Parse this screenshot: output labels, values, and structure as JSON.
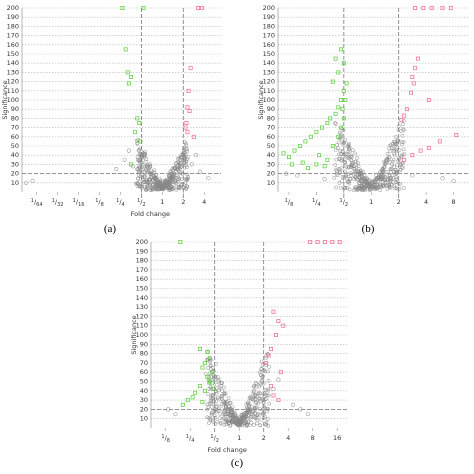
{
  "chart_data": [
    {
      "type": "scatter",
      "panel_label": "(a)",
      "xlabel": "Fold change",
      "ylabel": "Significance",
      "x_scale": "log2",
      "ylim": [
        0,
        200
      ],
      "yticks": [
        10,
        20,
        30,
        40,
        50,
        60,
        70,
        80,
        90,
        100,
        110,
        120,
        130,
        140,
        150,
        160,
        170,
        180,
        190,
        200
      ],
      "xticks": [
        {
          "v": -6,
          "label": "1/64"
        },
        {
          "v": -5,
          "label": "1/32"
        },
        {
          "v": -4,
          "label": "1/16"
        },
        {
          "v": -3,
          "label": "1/8"
        },
        {
          "v": -2,
          "label": "1/4"
        },
        {
          "v": -1,
          "label": "1/2"
        },
        {
          "v": 0,
          "label": "1"
        },
        {
          "v": 1,
          "label": "2"
        },
        {
          "v": 2,
          "label": "4"
        }
      ],
      "xlim": [
        -6.7,
        2.8
      ],
      "threshold_y": 20,
      "threshold_x": [
        -1,
        1
      ],
      "series": [
        {
          "color": "#55cc33",
          "points": [
            [
              -1.9,
              200
            ],
            [
              -0.9,
              200
            ],
            [
              -1.75,
              155
            ],
            [
              -1.65,
              130
            ],
            [
              -1.5,
              125
            ],
            [
              -1.6,
              118
            ],
            [
              -1.2,
              80
            ],
            [
              -1.1,
              75
            ],
            [
              -1.3,
              65
            ],
            [
              -1.05,
              55
            ],
            [
              -1.5,
              30
            ]
          ]
        },
        {
          "color": "#ee6688",
          "points": [
            [
              1.7,
              200
            ],
            [
              1.9,
              200
            ],
            [
              1.35,
              135
            ],
            [
              1.25,
              110
            ],
            [
              1.2,
              92
            ],
            [
              1.3,
              88
            ],
            [
              1.15,
              75
            ],
            [
              1.1,
              70
            ],
            [
              1.2,
              65
            ],
            [
              1.5,
              60
            ]
          ]
        },
        {
          "color": "#999999",
          "points": [
            [
              -6.5,
              10
            ],
            [
              -6.2,
              12
            ],
            [
              -2.2,
              25
            ],
            [
              -1.8,
              35
            ],
            [
              -1.6,
              45
            ],
            [
              -1.4,
              28
            ],
            [
              1.4,
              30
            ],
            [
              1.6,
              40
            ],
            [
              1.8,
              22
            ],
            [
              2.2,
              15
            ]
          ]
        }
      ],
      "cloud": {
        "left_tip": -1.2,
        "right_tip": 1.2,
        "height": 65
      }
    },
    {
      "type": "scatter",
      "panel_label": "(b)",
      "xlabel": "",
      "ylabel": "Significance",
      "x_scale": "log2",
      "ylim": [
        0,
        200
      ],
      "yticks": [
        10,
        20,
        30,
        40,
        50,
        60,
        70,
        80,
        90,
        100,
        110,
        120,
        130,
        140,
        150,
        160,
        170,
        180,
        190,
        200
      ],
      "xticks": [
        {
          "v": -3,
          "label": "1/8"
        },
        {
          "v": -2,
          "label": "1/4"
        },
        {
          "v": -1,
          "label": "1/2"
        },
        {
          "v": 0,
          "label": "1"
        },
        {
          "v": 1,
          "label": "2"
        },
        {
          "v": 2,
          "label": "4"
        },
        {
          "v": 3,
          "label": "8"
        }
      ],
      "xlim": [
        -3.4,
        3.6
      ],
      "threshold_y": 20,
      "threshold_x": [
        -1,
        1
      ],
      "series": [
        {
          "color": "#55cc33",
          "points": [
            [
              -1.1,
              155
            ],
            [
              -1.3,
              145
            ],
            [
              -1.0,
              140
            ],
            [
              -1.2,
              130
            ],
            [
              -1.4,
              120
            ],
            [
              -0.9,
              118
            ],
            [
              -1.0,
              110
            ],
            [
              -1.1,
              100
            ],
            [
              -1.2,
              92
            ],
            [
              -1.3,
              85
            ],
            [
              -1.5,
              80
            ],
            [
              -1.6,
              75
            ],
            [
              -1.8,
              70
            ],
            [
              -2.0,
              65
            ],
            [
              -2.2,
              60
            ],
            [
              -2.4,
              55
            ],
            [
              -2.6,
              50
            ],
            [
              -2.8,
              45
            ],
            [
              -3.2,
              42
            ],
            [
              -3.0,
              38
            ],
            [
              -2.5,
              32
            ],
            [
              -2.0,
              30
            ],
            [
              -1.7,
              28
            ],
            [
              -2.3,
              26
            ],
            [
              -1.9,
              40
            ],
            [
              -1.4,
              50
            ],
            [
              -1.2,
              60
            ],
            [
              -1.1,
              70
            ],
            [
              -1.0,
              80
            ],
            [
              -1.05,
              90
            ],
            [
              -0.95,
              100
            ],
            [
              -1.6,
              35
            ],
            [
              -2.9,
              30
            ]
          ]
        },
        {
          "color": "#ee6688",
          "points": [
            [
              1.6,
              200
            ],
            [
              1.9,
              200
            ],
            [
              2.2,
              200
            ],
            [
              2.6,
              200
            ],
            [
              2.9,
              200
            ],
            [
              1.7,
              145
            ],
            [
              1.6,
              135
            ],
            [
              1.5,
              125
            ],
            [
              1.55,
              118
            ],
            [
              1.45,
              108
            ],
            [
              2.1,
              100
            ],
            [
              1.3,
              90
            ],
            [
              1.2,
              83
            ],
            [
              1.1,
              78
            ],
            [
              3.1,
              62
            ],
            [
              2.5,
              55
            ],
            [
              2.1,
              48
            ],
            [
              1.8,
              45
            ],
            [
              1.5,
              40
            ],
            [
              1.2,
              35
            ]
          ]
        },
        {
          "color": "#999999",
          "points": [
            [
              -3.1,
              20
            ],
            [
              -2.7,
              18
            ],
            [
              2.6,
              15
            ],
            [
              3.0,
              12
            ],
            [
              -1.7,
              14
            ],
            [
              1.5,
              18
            ]
          ]
        }
      ],
      "cloud": {
        "left_tip": -1.3,
        "right_tip": 1.2,
        "height": 90
      }
    },
    {
      "type": "scatter",
      "panel_label": "(c)",
      "xlabel": "Fold change",
      "ylabel": "Significance",
      "x_scale": "log2",
      "ylim": [
        0,
        200
      ],
      "yticks": [
        10,
        20,
        30,
        40,
        50,
        60,
        70,
        80,
        90,
        100,
        110,
        120,
        130,
        140,
        150,
        160,
        170,
        180,
        190,
        200
      ],
      "xticks": [
        {
          "v": -3,
          "label": "1/8"
        },
        {
          "v": -2,
          "label": "1/4"
        },
        {
          "v": -1,
          "label": "1/2"
        },
        {
          "v": 0,
          "label": "1"
        },
        {
          "v": 1,
          "label": "2"
        },
        {
          "v": 2,
          "label": "4"
        },
        {
          "v": 3,
          "label": "8"
        },
        {
          "v": 4,
          "label": "16"
        }
      ],
      "xlim": [
        -3.6,
        4.4
      ],
      "threshold_y": 20,
      "threshold_x": [
        -1,
        1
      ],
      "series": [
        {
          "color": "#55cc33",
          "points": [
            [
              -2.4,
              200
            ],
            [
              -1.6,
              85
            ],
            [
              -1.3,
              82
            ],
            [
              -1.2,
              75
            ],
            [
              -1.4,
              70
            ],
            [
              -1.5,
              65
            ],
            [
              -1.1,
              60
            ],
            [
              -1.3,
              55
            ],
            [
              -1.2,
              50
            ],
            [
              -1.6,
              45
            ],
            [
              -1.4,
              40
            ],
            [
              -1.8,
              38
            ],
            [
              -1.9,
              33
            ],
            [
              -2.1,
              30
            ],
            [
              -1.5,
              28
            ],
            [
              -2.3,
              25
            ],
            [
              -1.1,
              48
            ],
            [
              -1.05,
              42
            ]
          ]
        },
        {
          "color": "#ee6688",
          "points": [
            [
              2.9,
              200
            ],
            [
              3.2,
              200
            ],
            [
              3.5,
              200
            ],
            [
              3.8,
              200
            ],
            [
              4.1,
              200
            ],
            [
              1.4,
              125
            ],
            [
              1.6,
              115
            ],
            [
              1.8,
              110
            ],
            [
              1.5,
              100
            ],
            [
              1.3,
              85
            ],
            [
              1.2,
              78
            ],
            [
              1.1,
              70
            ],
            [
              1.7,
              60
            ],
            [
              1.3,
              45
            ],
            [
              1.4,
              35
            ],
            [
              1.6,
              30
            ]
          ]
        },
        {
          "color": "#999999",
          "points": [
            [
              2.2,
              25
            ],
            [
              2.5,
              20
            ],
            [
              2.8,
              15
            ],
            [
              -2.6,
              15
            ],
            [
              -2.9,
              20
            ],
            [
              1.4,
              42
            ],
            [
              1.6,
              52
            ]
          ]
        }
      ],
      "cloud": {
        "left_tip": -1.3,
        "right_tip": 1.2,
        "height": 95
      }
    }
  ]
}
